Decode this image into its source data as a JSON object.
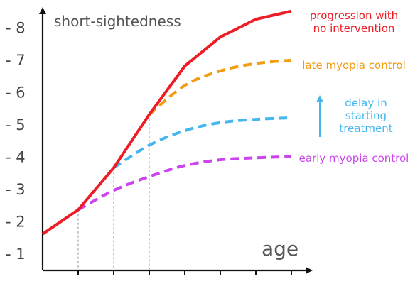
{
  "chart_data": {
    "type": "line",
    "ylabel": "short-sightedness",
    "xlabel": "age",
    "y_tick_labels": [
      "- 1",
      "- 2",
      "- 3",
      "- 4",
      "- 5",
      "- 6",
      "- 7",
      "- 8"
    ],
    "y_tick_values": [
      1,
      2,
      3,
      4,
      5,
      6,
      7,
      8
    ],
    "x_ticks": [
      1,
      2,
      3,
      4,
      5,
      6,
      7
    ],
    "xlim": [
      0,
      7.5
    ],
    "ylim": [
      0.4,
      8.8
    ],
    "series": [
      {
        "name": "progression with no intervention",
        "label_lines": [
          "progression with",
          "no intervention"
        ],
        "color": "#ee1c25",
        "style": "solid",
        "points": [
          [
            0,
            1.6
          ],
          [
            1,
            2.35
          ],
          [
            2,
            3.65
          ],
          [
            3,
            5.3
          ],
          [
            4,
            6.8
          ],
          [
            5,
            7.7
          ],
          [
            6,
            8.25
          ],
          [
            7,
            8.5
          ]
        ]
      },
      {
        "name": "late myopia control",
        "label_lines": [
          "late myopia control"
        ],
        "color": "#f39c12",
        "style": "dashed",
        "points": [
          [
            3,
            5.3
          ],
          [
            4,
            6.2
          ],
          [
            5,
            6.65
          ],
          [
            6,
            6.88
          ],
          [
            7,
            6.98
          ]
        ]
      },
      {
        "name": "early myopia control",
        "label_lines": [
          "early myopia control"
        ],
        "color": "#cc44ee",
        "style": "dashed",
        "points": [
          [
            1,
            2.35
          ],
          [
            2,
            2.95
          ],
          [
            3,
            3.38
          ],
          [
            4,
            3.72
          ],
          [
            5,
            3.9
          ],
          [
            6,
            3.96
          ],
          [
            7,
            4.0
          ]
        ]
      },
      {
        "name": "",
        "label_lines": [],
        "color": "#44b8ee",
        "style": "dashed",
        "points": [
          [
            2,
            3.65
          ],
          [
            3,
            4.35
          ],
          [
            4,
            4.8
          ],
          [
            5,
            5.05
          ],
          [
            6,
            5.15
          ],
          [
            7,
            5.2
          ]
        ]
      }
    ],
    "drop_lines_x": [
      1,
      2,
      3
    ],
    "annotation": {
      "lines": [
        "delay in",
        "starting",
        "treatment"
      ],
      "color": "#44b8ee",
      "arrow": "up"
    },
    "grid": false
  }
}
